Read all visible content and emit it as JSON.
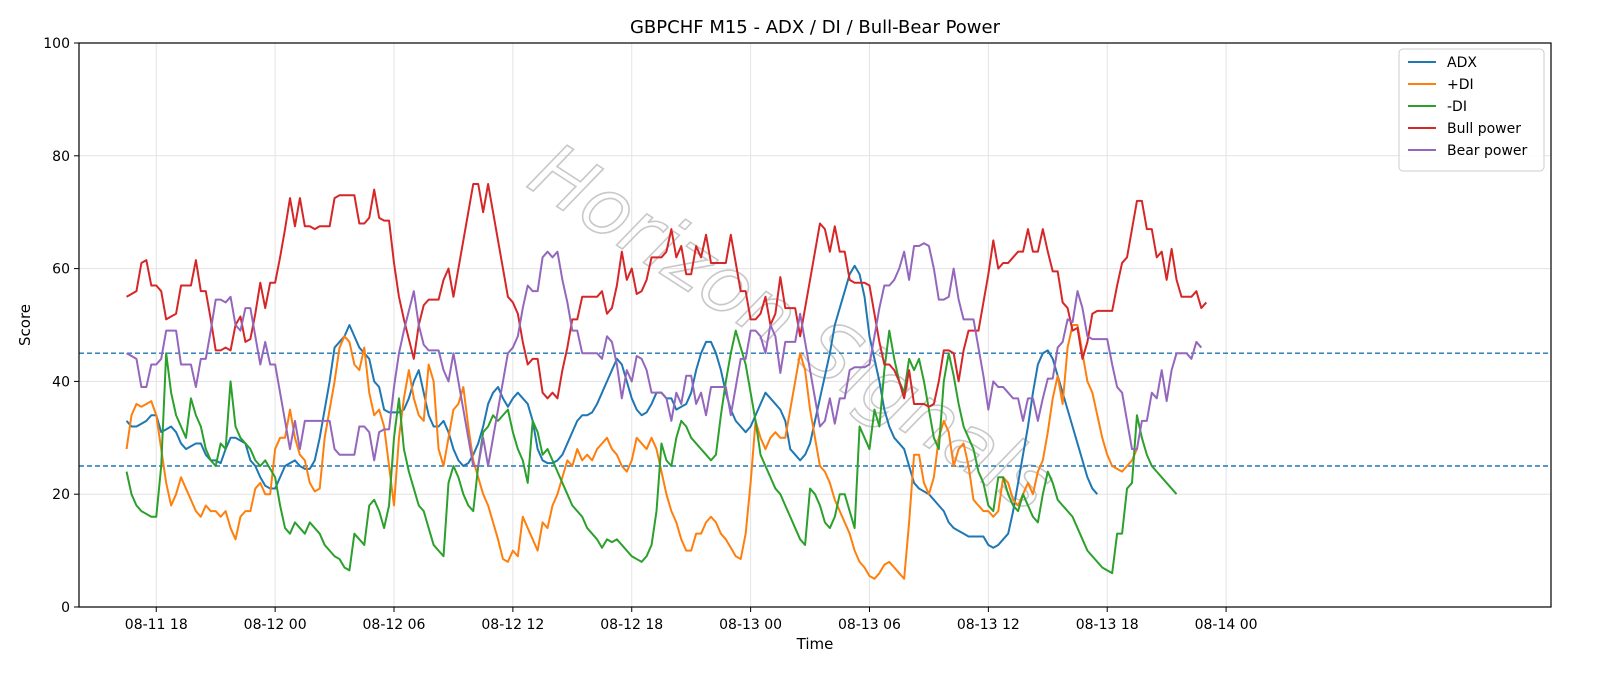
{
  "chart_data": {
    "type": "line",
    "title": "GBPCHF M15 - ADX / DI / Bull-Bear Power",
    "xlabel": "Time",
    "ylabel": "Score",
    "ylim": [
      0,
      100
    ],
    "yticks": [
      0,
      20,
      40,
      60,
      80,
      100
    ],
    "xlim_hours": [
      -3.9,
      70.4
    ],
    "xticks": [
      {
        "hour": 0,
        "label": "08-11 18"
      },
      {
        "hour": 6,
        "label": "08-12 00"
      },
      {
        "hour": 12,
        "label": "08-12 06"
      },
      {
        "hour": 18,
        "label": "08-12 12"
      },
      {
        "hour": 24,
        "label": "08-12 18"
      },
      {
        "hour": 30,
        "label": "08-13 00"
      },
      {
        "hour": 36,
        "label": "08-13 06"
      },
      {
        "hour": 42,
        "label": "08-13 12"
      },
      {
        "hour": 48,
        "label": "08-13 18"
      },
      {
        "hour": 54,
        "label": "08-14 00"
      }
    ],
    "x_start_hour": -1.5,
    "x_step_hours": 0.25,
    "reference_lines": [
      {
        "y": 45,
        "color": "#1f77b4",
        "style": "dashed"
      },
      {
        "y": 25,
        "color": "#1f77b4",
        "style": "dashed"
      }
    ],
    "grid": true,
    "legend_position": "top-right",
    "watermark": "Horizon Signals",
    "series": [
      {
        "name": "ADX",
        "color": "#1f77b4",
        "values": [
          33,
          32,
          32,
          32.5,
          33,
          34,
          34,
          31,
          31.5,
          32,
          31,
          29,
          28,
          28.5,
          29,
          29,
          27,
          26,
          26,
          25.5,
          28,
          30,
          30,
          29.5,
          29,
          26,
          25,
          23,
          21.5,
          21,
          21,
          23,
          25,
          25.5,
          26,
          25,
          24.5,
          24.5,
          26,
          30,
          35,
          40,
          46,
          47,
          48,
          50,
          48,
          46,
          45,
          44,
          40,
          39,
          35,
          34.5,
          34.5,
          34.5,
          35,
          37,
          40,
          42,
          38,
          34,
          32,
          32,
          33,
          31,
          28,
          26,
          25,
          25.5,
          27,
          29,
          32,
          36,
          38,
          39,
          37,
          35.5,
          37,
          38,
          37,
          36,
          33,
          28,
          26,
          25.5,
          25.5,
          26,
          27,
          29,
          31,
          33,
          34,
          34,
          34.5,
          36,
          38,
          40,
          42,
          44,
          43,
          40,
          37,
          35,
          34,
          34.5,
          36,
          38,
          38,
          37,
          37,
          35,
          35.5,
          36,
          38,
          42,
          45,
          47,
          47,
          45,
          42,
          38,
          35,
          33,
          32,
          31,
          32,
          34,
          36,
          38,
          37,
          36,
          35,
          33,
          28,
          27,
          26,
          27,
          29,
          33,
          37,
          41,
          45,
          50,
          53,
          56,
          59,
          60.5,
          59,
          55,
          48,
          44,
          40,
          35,
          32,
          30,
          29,
          28,
          25,
          22,
          21,
          20.5,
          20,
          19,
          18,
          17,
          15,
          14,
          13.5,
          13,
          12.5,
          12.5,
          12.5,
          12.5,
          11,
          10.5,
          11,
          12,
          13,
          17,
          22,
          27,
          32,
          38,
          43,
          45,
          45.5,
          44,
          41,
          38,
          35,
          32,
          29,
          26,
          23,
          21,
          20
        ]
      },
      {
        "name": "+DI",
        "color": "#ff7f0e",
        "values": [
          28,
          34,
          36,
          35.5,
          36,
          36.5,
          34,
          28,
          22,
          18,
          20,
          23,
          21,
          19,
          17,
          16,
          18,
          17,
          17,
          16,
          17,
          14,
          12,
          16,
          17,
          17,
          21,
          22,
          20,
          20,
          28,
          30,
          30,
          35,
          30,
          27,
          26,
          22,
          20.5,
          21,
          30,
          35,
          40,
          46,
          48,
          47,
          43,
          42,
          46,
          38,
          34,
          35,
          32,
          25,
          18,
          30,
          37,
          42,
          37,
          34,
          33,
          43,
          40,
          28,
          25,
          30,
          35,
          36,
          39,
          32,
          26,
          23,
          20,
          18,
          15,
          12,
          8.5,
          8,
          10,
          9,
          16,
          14,
          12,
          10,
          15,
          14,
          18,
          20,
          23,
          26,
          25,
          28,
          26,
          27,
          26,
          28,
          29,
          30,
          28,
          27,
          25,
          24,
          26,
          30,
          29,
          28,
          30,
          28,
          24,
          20,
          17,
          15,
          12,
          10,
          10,
          13,
          13,
          15,
          16,
          15,
          13,
          12,
          10.5,
          9,
          8.5,
          13,
          22,
          33,
          30,
          28,
          30,
          31,
          30,
          30,
          35,
          40,
          45,
          42,
          35,
          30,
          25,
          24,
          22,
          19,
          17,
          15,
          13,
          10,
          8,
          7,
          5.5,
          5,
          6,
          7.5,
          8,
          7,
          6,
          5,
          15,
          27,
          27,
          22,
          20,
          23,
          30,
          33,
          31,
          25,
          28,
          29,
          25,
          19,
          18,
          17,
          17,
          16,
          17,
          23,
          22,
          19,
          18,
          20,
          22,
          20,
          24,
          26,
          31,
          37,
          41,
          36,
          46,
          50,
          50,
          45,
          40,
          38,
          34,
          30,
          27,
          25,
          24.5,
          24,
          25,
          26,
          28
        ]
      },
      {
        "name": "-DI",
        "color": "#2ca02c",
        "values": [
          24,
          20,
          18,
          17,
          16.5,
          16,
          16,
          25,
          45,
          38,
          34,
          32,
          30,
          37,
          34,
          32,
          28,
          26,
          25,
          29,
          28,
          40,
          32,
          30,
          29,
          28,
          26,
          25,
          26,
          24.5,
          23,
          18,
          14,
          13,
          15,
          14,
          13,
          15,
          14,
          13,
          11,
          10,
          9,
          8.5,
          7,
          6.5,
          13,
          12,
          11,
          18,
          19,
          17,
          14,
          18,
          30,
          37,
          28,
          24,
          21,
          18,
          17,
          14,
          11,
          10,
          9,
          22,
          25,
          23,
          20,
          18,
          17,
          25,
          31,
          32,
          34,
          33,
          34,
          35,
          31,
          28,
          26,
          22,
          33,
          31,
          27,
          28,
          26,
          24,
          22,
          20,
          18,
          17,
          16,
          14,
          13,
          12,
          10.5,
          12,
          11.5,
          12,
          11,
          10,
          9,
          8.5,
          8,
          9,
          11,
          17,
          29,
          26,
          25,
          30,
          33,
          32,
          30,
          29,
          28,
          27,
          26,
          27,
          34,
          40,
          45,
          49,
          46,
          43,
          38,
          33,
          27,
          25,
          23,
          21,
          20,
          18,
          16,
          14,
          12,
          11,
          21,
          20,
          18,
          15,
          14,
          16,
          20,
          20,
          17,
          14,
          32,
          30,
          28,
          35,
          32,
          42,
          49,
          44,
          40,
          38,
          44,
          42,
          44,
          40,
          35,
          30,
          28,
          40,
          45,
          41,
          36,
          32,
          30,
          28,
          24,
          22,
          18,
          17,
          23,
          23,
          20,
          18,
          17,
          20,
          18,
          16,
          15,
          20,
          24,
          22,
          19,
          18,
          17,
          16,
          14,
          12,
          10,
          9,
          8,
          7,
          6.5,
          6,
          13,
          13,
          21,
          22,
          34,
          30,
          27,
          25,
          24,
          23,
          22,
          21,
          20
        ]
      },
      {
        "name": "Bull power",
        "color": "#d62728",
        "values": [
          55,
          55.5,
          56,
          61,
          61.5,
          57,
          57,
          56,
          51,
          51.5,
          52,
          57,
          57,
          57,
          61.5,
          56,
          56,
          51,
          45.5,
          45.5,
          46,
          45.5,
          50,
          51.5,
          47,
          47.5,
          52,
          57.5,
          53,
          57.5,
          57.5,
          62,
          67,
          72.5,
          67.5,
          72.5,
          67.5,
          67.5,
          67,
          67.5,
          67.5,
          67.5,
          72.5,
          73,
          73,
          73,
          73,
          68,
          68,
          69,
          74,
          69,
          68.5,
          68.5,
          61,
          55,
          51,
          47.5,
          44,
          50,
          53.5,
          54.5,
          54.5,
          54.5,
          58,
          60,
          55,
          60,
          65,
          70,
          75,
          75,
          70,
          75,
          70,
          65,
          60,
          55,
          54,
          52,
          47,
          43,
          44,
          44,
          38,
          37,
          38,
          37,
          42,
          46,
          51,
          51,
          55,
          55,
          55,
          55,
          56,
          52,
          53,
          57,
          63,
          58,
          60,
          55.5,
          56,
          58,
          62,
          62,
          62,
          63,
          67,
          62,
          64,
          59,
          59,
          64,
          62,
          66,
          61,
          61,
          61,
          61,
          66,
          61,
          56,
          56,
          51,
          51,
          52,
          55,
          50,
          52,
          58.5,
          53,
          53,
          53,
          48,
          53,
          58,
          63,
          68,
          67,
          63,
          67.5,
          63,
          63,
          58,
          57.5,
          57.5,
          57.5,
          57,
          52,
          47,
          43,
          43,
          42,
          40,
          37,
          42,
          36,
          36,
          36,
          35.5,
          36,
          40,
          45.5,
          45.5,
          45,
          40,
          45.5,
          49,
          49,
          49,
          54,
          59,
          65,
          60,
          61,
          61,
          62,
          63,
          63,
          67,
          63,
          63,
          67,
          63,
          59.5,
          59.5,
          54,
          53,
          49,
          49.5,
          44,
          47,
          52,
          52.5,
          52.5,
          52.5,
          52.5,
          57,
          61,
          62,
          67,
          72,
          72,
          67,
          67,
          62,
          63,
          58,
          63.5,
          58,
          55,
          55,
          55,
          56,
          53,
          54
        ]
      },
      {
        "name": "Bear power",
        "color": "#9467bd",
        "values": [
          45,
          44.5,
          44,
          39,
          39,
          43,
          43,
          44,
          49,
          49,
          49,
          43,
          43,
          43,
          39,
          44,
          44,
          49,
          54.5,
          54.5,
          54,
          55,
          50,
          49,
          53,
          53,
          48,
          43,
          47,
          43,
          43,
          38,
          33,
          28,
          33,
          28,
          33,
          33,
          33,
          33,
          33,
          33,
          28,
          27,
          27,
          27,
          27,
          32,
          32,
          31,
          26,
          31,
          31.5,
          31.5,
          39,
          45,
          49,
          52.5,
          56,
          50,
          46.5,
          45.5,
          45.5,
          45.5,
          42,
          40,
          45,
          40,
          35,
          30,
          25,
          25,
          30,
          25,
          30,
          35,
          40,
          45,
          46,
          48,
          53,
          57,
          56,
          56,
          62,
          63,
          62,
          63,
          58,
          54,
          49,
          49,
          45,
          45,
          45,
          45,
          44,
          48,
          47,
          43,
          37,
          42,
          40,
          44.5,
          44,
          42,
          38,
          38,
          38,
          37,
          33,
          38,
          36,
          41,
          41,
          36,
          38,
          34,
          39,
          39,
          39,
          39,
          34,
          39,
          44,
          44,
          49,
          49,
          48,
          45,
          50,
          48,
          41.5,
          47,
          47,
          47,
          52,
          47,
          42,
          37,
          32,
          33,
          37,
          32.5,
          37,
          37,
          42,
          42.5,
          42.5,
          42.5,
          43,
          48,
          53,
          57,
          57,
          58,
          60,
          63,
          58,
          64,
          64,
          64.5,
          64,
          60,
          54.5,
          54.5,
          55,
          60,
          54.5,
          51,
          51,
          51,
          46,
          41,
          35,
          40,
          39,
          39,
          38,
          37,
          37,
          33,
          37,
          37,
          33,
          37,
          40.5,
          40.5,
          46,
          47,
          51,
          50.5,
          56,
          53,
          48,
          47.5,
          47.5,
          47.5,
          47.5,
          43,
          39,
          38,
          33,
          28,
          28,
          33,
          33,
          38,
          37,
          42,
          36.5,
          42,
          45,
          45,
          45,
          44,
          47,
          46
        ]
      }
    ]
  }
}
